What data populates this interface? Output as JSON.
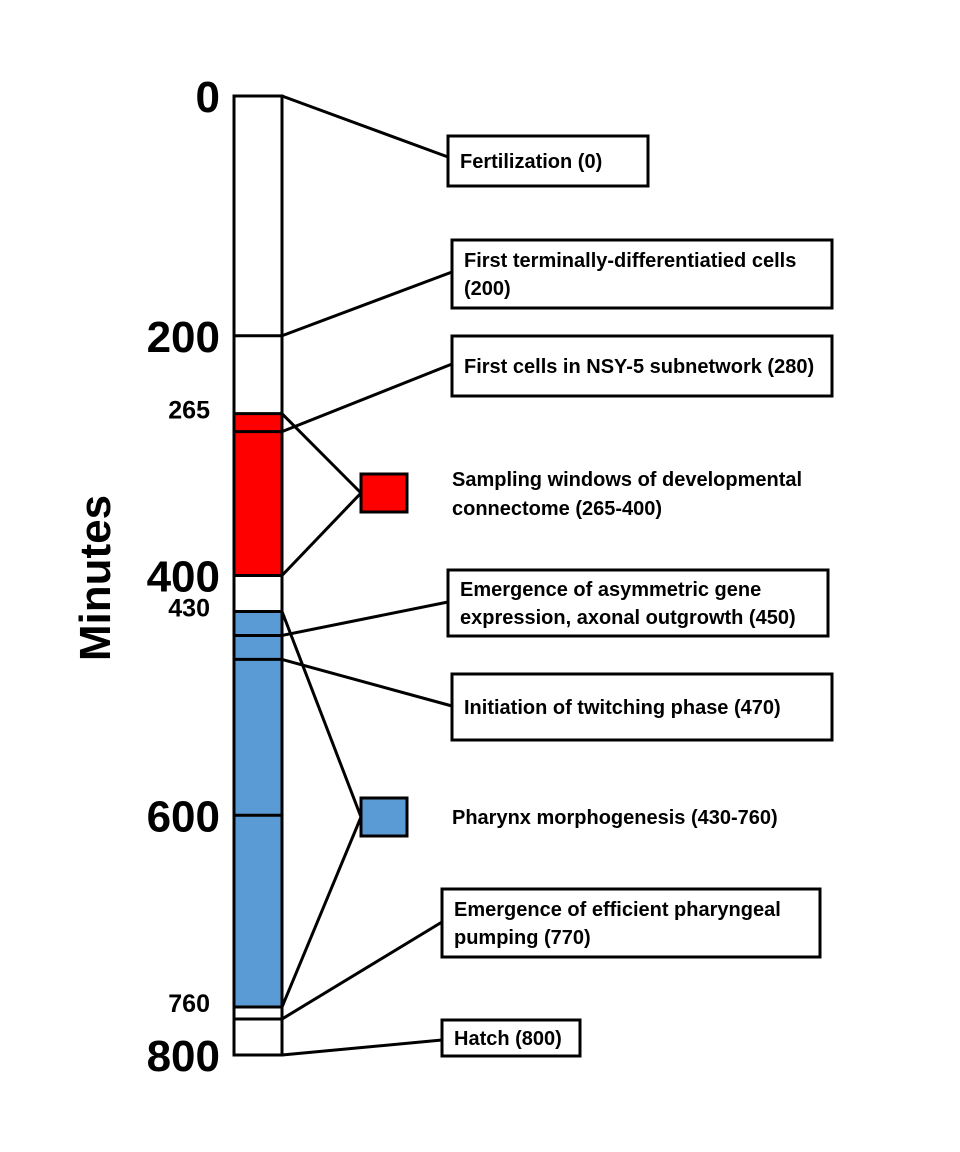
{
  "axis": {
    "label": "Minutes",
    "min": 0,
    "max": 800,
    "major_ticks": [
      "0",
      "200",
      "400",
      "600",
      "800"
    ],
    "minor_ticks": [
      "265",
      "430",
      "760"
    ]
  },
  "colors": {
    "sampling": "#ff0000",
    "pharynx": "#5b9bd5",
    "bar": "#ffffff",
    "stroke": "#000000"
  },
  "ranges": [
    {
      "id": "sampling",
      "start": 265,
      "end": 400,
      "color": "#ff0000",
      "lines": [
        "Sampling windows of developmental",
        "connectome (265-400)"
      ]
    },
    {
      "id": "pharynx",
      "start": 430,
      "end": 760,
      "color": "#5b9bd5",
      "lines": [
        "Pharynx morphogenesis (430-760)"
      ]
    }
  ],
  "events": [
    {
      "id": "fertilization",
      "time": 0,
      "lines": [
        "Fertilization (0)"
      ]
    },
    {
      "id": "first-terminal",
      "time": 200,
      "lines": [
        "First terminally-differentiatied cells",
        "(200)"
      ]
    },
    {
      "id": "nsy5",
      "time": 280,
      "lines": [
        "First cells in NSY-5 subnetwork (280)"
      ]
    },
    {
      "id": "asymmetric",
      "time": 450,
      "lines": [
        "Emergence of asymmetric gene",
        "expression, axonal outgrowth (450)"
      ]
    },
    {
      "id": "twitching",
      "time": 470,
      "lines": [
        "Initiation of twitching phase (470)"
      ]
    },
    {
      "id": "pumping",
      "time": 770,
      "lines": [
        "Emergence of efficient pharyngeal",
        "pumping (770)"
      ]
    },
    {
      "id": "hatch",
      "time": 800,
      "lines": [
        "Hatch (800)"
      ]
    }
  ]
}
